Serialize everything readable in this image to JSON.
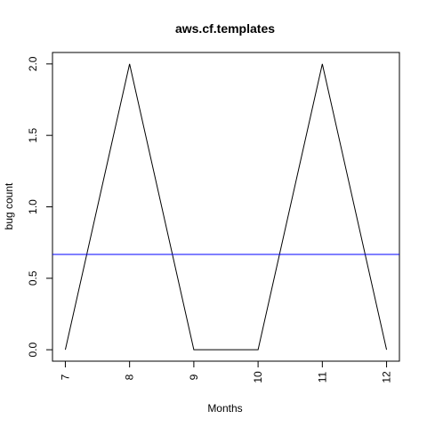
{
  "chart_data": {
    "type": "line",
    "title": "aws.cf.templates",
    "xlabel": "Months",
    "ylabel": "bug count",
    "x": [
      7,
      8,
      9,
      10,
      11,
      12
    ],
    "series": [
      {
        "values": [
          0,
          2,
          0,
          0,
          2,
          0
        ],
        "color": "#000000"
      }
    ],
    "reference_line": {
      "y": 0.6667,
      "color": "#0000ff",
      "orientation": "horizontal"
    },
    "xlim": [
      6.8,
      12.2
    ],
    "ylim": [
      -0.08,
      2.08
    ],
    "x_ticks": [
      7,
      8,
      9,
      10,
      11,
      12
    ],
    "x_tick_labels": [
      "7",
      "8",
      "9",
      "10",
      "11",
      "12"
    ],
    "y_ticks": [
      0,
      0.5,
      1,
      1.5,
      2
    ],
    "y_tick_labels": [
      "0.0",
      "0.5",
      "1.0",
      "1.5",
      "2.0"
    ],
    "grid": false,
    "legend": "none"
  }
}
